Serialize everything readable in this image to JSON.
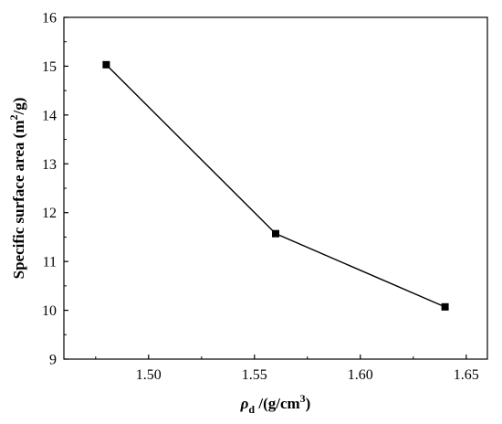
{
  "chart_data": {
    "type": "line",
    "x": [
      1.48,
      1.56,
      1.64
    ],
    "series": [
      {
        "values": [
          15.03,
          11.57,
          10.07
        ],
        "color": "#000000",
        "marker": "square"
      }
    ],
    "xlabel_parts": {
      "rho": "ρ",
      "sub": "d",
      "unit_pre": " /(g/cm",
      "sup": "3",
      "unit_post": ")"
    },
    "ylabel_parts": {
      "pre": "Specific surface area (m",
      "sup": "2",
      "post": "/g)"
    },
    "xlim": [
      1.46,
      1.66
    ],
    "ylim": [
      9,
      16
    ],
    "xticks": [
      1.5,
      1.55,
      1.6,
      1.65
    ],
    "xtick_labels": [
      "1.50",
      "1.55",
      "1.60",
      "1.65"
    ],
    "yticks": [
      9,
      10,
      11,
      12,
      13,
      14,
      15,
      16
    ],
    "ytick_labels": [
      "9",
      "10",
      "11",
      "12",
      "13",
      "14",
      "15",
      "16"
    ],
    "grid": false,
    "legend": "none"
  }
}
